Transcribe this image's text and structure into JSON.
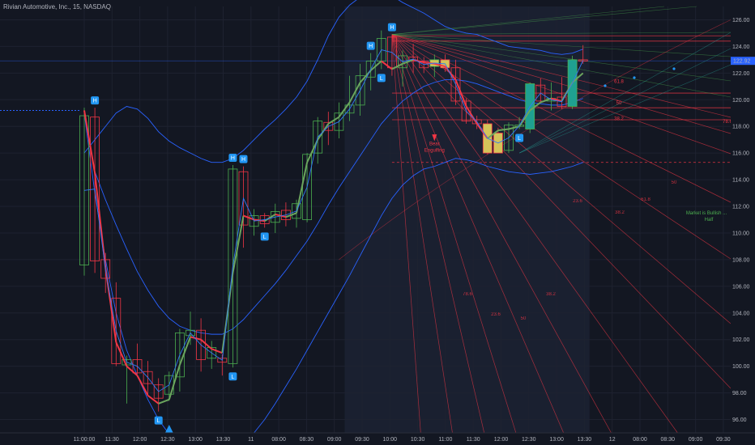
{
  "header": {
    "title": "Rivian Automotive, Inc., 15, NASDAQ"
  },
  "colors": {
    "bg": "#131722",
    "grid": "#1e2230",
    "up": "#26a69a",
    "down": "#ef5350",
    "bb": "#2962ff",
    "zigzag_red": "#f23645",
    "zigzag_green": "#6ba55e",
    "zigzag_blue": "#3179f5",
    "yellow": "#d4c45a",
    "teal": "#1fa091"
  },
  "chart_data": {
    "type": "candlestick",
    "title": "Rivian Automotive, Inc., 15, NASDAQ",
    "ylim": [
      95,
      127
    ],
    "y_ticks": [
      "126.00",
      "124.00",
      "122.00",
      "120.00",
      "118.00",
      "116.00",
      "114.00",
      "112.00",
      "110.00",
      "108.00",
      "106.00",
      "104.00",
      "102.00",
      "100.00",
      "98.00",
      "96.00"
    ],
    "x_ticks": [
      "11:00:00",
      "11:30",
      "12:00",
      "12:30",
      "13:00",
      "13:30",
      "11",
      "08:00",
      "08:30",
      "09:00",
      "09:30",
      "10:00",
      "10:30",
      "11:00",
      "11:30",
      "12:00",
      "12:30",
      "13:00",
      "13:30",
      "12",
      "08:00",
      "08:30",
      "09:00",
      "09:30"
    ],
    "last_price": "122.92",
    "candles": [
      {
        "o": 107.6,
        "h": 119.4,
        "l": 106.8,
        "c": 118.8
      },
      {
        "o": 118.7,
        "h": 119.4,
        "l": 107.0,
        "c": 107.9
      },
      {
        "o": 108.0,
        "h": 108.5,
        "l": 105.5,
        "c": 106.6
      },
      {
        "o": 105.1,
        "h": 106.3,
        "l": 100.0,
        "c": 100.2
      },
      {
        "o": 100.1,
        "h": 100.8,
        "l": 97.2,
        "c": 100.5
      },
      {
        "o": 100.5,
        "h": 101.7,
        "l": 99.4,
        "c": 99.5
      },
      {
        "o": 99.6,
        "h": 100.4,
        "l": 97.9,
        "c": 98.7
      },
      {
        "o": 98.6,
        "h": 99.1,
        "l": 96.6,
        "c": 97.6
      },
      {
        "o": 97.9,
        "h": 99.6,
        "l": 97.4,
        "c": 99.3
      },
      {
        "o": 99.2,
        "h": 102.8,
        "l": 98.1,
        "c": 102.5
      },
      {
        "o": 102.3,
        "h": 104.1,
        "l": 101.6,
        "c": 102.7
      },
      {
        "o": 102.7,
        "h": 103.6,
        "l": 99.6,
        "c": 100.5
      },
      {
        "o": 100.6,
        "h": 101.9,
        "l": 99.8,
        "c": 101.4
      },
      {
        "o": 100.6,
        "h": 100.9,
        "l": 99.3,
        "c": 100.3
      },
      {
        "o": 100.2,
        "h": 115.1,
        "l": 99.9,
        "c": 114.8
      },
      {
        "o": 114.6,
        "h": 115.0,
        "l": 108.9,
        "c": 110.6
      },
      {
        "o": 110.5,
        "h": 111.8,
        "l": 109.8,
        "c": 111.3
      },
      {
        "o": 111.3,
        "h": 111.5,
        "l": 110.4,
        "c": 110.7
      },
      {
        "o": 110.8,
        "h": 112.2,
        "l": 110.0,
        "c": 111.6
      },
      {
        "o": 111.7,
        "h": 112.3,
        "l": 110.5,
        "c": 111.0
      },
      {
        "o": 111.1,
        "h": 112.5,
        "l": 110.4,
        "c": 112.2
      },
      {
        "o": 111.0,
        "h": 116.0,
        "l": 110.8,
        "c": 115.9
      },
      {
        "o": 116.0,
        "h": 118.7,
        "l": 115.2,
        "c": 118.4
      },
      {
        "o": 118.3,
        "h": 119.1,
        "l": 116.6,
        "c": 117.7
      },
      {
        "o": 117.7,
        "h": 119.8,
        "l": 117.1,
        "c": 119.0
      },
      {
        "o": 119.0,
        "h": 121.8,
        "l": 118.4,
        "c": 119.6
      },
      {
        "o": 119.6,
        "h": 122.7,
        "l": 118.8,
        "c": 121.8
      },
      {
        "o": 121.7,
        "h": 123.5,
        "l": 120.7,
        "c": 122.9
      },
      {
        "o": 122.9,
        "h": 125.2,
        "l": 122.3,
        "c": 124.6
      },
      {
        "o": 124.7,
        "h": 124.9,
        "l": 121.8,
        "c": 122.4
      },
      {
        "o": 122.4,
        "h": 123.7,
        "l": 121.0,
        "c": 123.3
      },
      {
        "o": 123.2,
        "h": 124.2,
        "l": 122.0,
        "c": 122.9
      },
      {
        "o": 122.9,
        "h": 123.2,
        "l": 122.0,
        "c": 122.4
      },
      {
        "o": 122.5,
        "h": 123.4,
        "l": 121.7,
        "c": 123.0
      },
      {
        "o": 123.0,
        "h": 123.4,
        "l": 122.1,
        "c": 122.4
      },
      {
        "o": 122.4,
        "h": 123.0,
        "l": 119.6,
        "c": 119.9
      },
      {
        "o": 119.9,
        "h": 120.1,
        "l": 118.2,
        "c": 118.4
      },
      {
        "o": 118.5,
        "h": 118.8,
        "l": 117.8,
        "c": 118.2
      },
      {
        "o": 118.2,
        "h": 118.5,
        "l": 115.9,
        "c": 116.0
      },
      {
        "o": 117.5,
        "h": 117.9,
        "l": 116.0,
        "c": 116.0
      },
      {
        "o": 116.2,
        "h": 118.3,
        "l": 116.0,
        "c": 118.1
      },
      {
        "o": 118.0,
        "h": 118.7,
        "l": 117.8,
        "c": 118.1
      },
      {
        "o": 117.8,
        "h": 121.3,
        "l": 117.5,
        "c": 121.2
      },
      {
        "o": 121.1,
        "h": 121.6,
        "l": 119.8,
        "c": 119.9
      },
      {
        "o": 119.9,
        "h": 121.3,
        "l": 119.2,
        "c": 120.1
      },
      {
        "o": 120.2,
        "h": 121.7,
        "l": 119.3,
        "c": 119.5
      },
      {
        "o": 119.5,
        "h": 123.3,
        "l": 119.3,
        "c": 123.0
      },
      {
        "o": 123.0,
        "h": 124.1,
        "l": 122.7,
        "c": 122.9
      }
    ],
    "bb_upper": [
      116,
      117,
      118,
      119,
      119.5,
      119.3,
      118.6,
      117.6,
      116.9,
      116.4,
      116.0,
      115.6,
      115.3,
      115.3,
      115.6,
      116.2,
      117.0,
      117.8,
      118.5,
      119.3,
      120.2,
      121.4,
      123.0,
      124.8,
      126.2,
      127.1,
      127.7,
      128.0,
      128.1,
      127.8,
      127.3,
      126.9,
      126.5,
      126.0,
      125.5,
      125.2,
      125.0,
      124.9,
      124.6,
      124.3,
      124.0,
      123.9,
      123.8,
      123.7,
      123.5,
      123.4,
      123.5,
      123.8
    ],
    "bb_mid": [
      119,
      114.6,
      112.5,
      110.6,
      108.8,
      107.1,
      105.7,
      104.5,
      103.6,
      103.0,
      102.7,
      102.5,
      102.4,
      102.4,
      102.8,
      103.5,
      104.4,
      105.3,
      106.2,
      107.2,
      108.3,
      109.4,
      110.7,
      112.1,
      113.4,
      114.6,
      115.8,
      117.0,
      118.2,
      119.1,
      119.9,
      120.5,
      121.0,
      121.3,
      121.5,
      121.5,
      121.4,
      121.2,
      120.9,
      120.6,
      120.3,
      120.0,
      119.8,
      119.7,
      119.6,
      119.6,
      119.8,
      120.1
    ],
    "bb_lower": [
      119,
      113,
      108,
      104,
      101.2,
      99.3,
      97.5,
      96.0,
      94.9,
      94.3,
      94.0,
      93.8,
      93.6,
      93.6,
      93.8,
      94.3,
      95.0,
      96.0,
      97.2,
      98.5,
      99.8,
      101.2,
      102.6,
      104.0,
      105.4,
      106.8,
      108.3,
      109.8,
      111.3,
      112.6,
      113.6,
      114.3,
      114.8,
      115.0,
      115.3,
      115.6,
      115.5,
      115.3,
      115.0,
      114.8,
      114.6,
      114.5,
      114.4,
      114.5,
      114.6,
      114.8,
      115.0,
      115.3
    ],
    "zigzag": [
      119.2,
      114.5,
      107.4,
      101.8,
      100.0,
      99.3,
      97.8,
      97.2,
      97.5,
      100.1,
      102.2,
      102.0,
      101.3,
      101.0,
      107.0,
      111.3,
      111.0,
      110.9,
      111.4,
      111.2,
      111.5,
      115.3,
      117.0,
      118.2,
      118.7,
      119.8,
      121.3,
      122.2,
      122.9,
      122.3,
      122.7,
      123.0,
      122.8,
      122.7,
      122.5,
      121.5,
      119.5,
      118.2,
      117.1,
      117.7,
      117.8,
      118.0,
      119.2,
      119.8,
      120.1,
      119.9,
      121.3,
      122.0
    ],
    "markers": [
      {
        "i": 1,
        "txt": "H",
        "pos": "above"
      },
      {
        "i": 7,
        "txt": "L",
        "pos": "below"
      },
      {
        "i": 14,
        "txt": "H",
        "pos": "above"
      },
      {
        "i": 14,
        "txt": "L",
        "pos": "below"
      },
      {
        "i": 15,
        "txt": "H",
        "pos": "above"
      },
      {
        "i": 17,
        "txt": "L",
        "pos": "below"
      },
      {
        "i": 27,
        "txt": "H",
        "pos": "above"
      },
      {
        "i": 29,
        "txt": "H",
        "pos": "above"
      },
      {
        "i": 28,
        "txt": "L",
        "pos": "below"
      },
      {
        "i": 41,
        "txt": "L",
        "pos": "below"
      }
    ],
    "fib_levels": [
      {
        "label": "61.8",
        "price": 121.2,
        "color": "#f23645"
      },
      {
        "label": "50",
        "price": 119.6,
        "color": "#f23645"
      },
      {
        "label": "38.2",
        "price": 118.4,
        "color": "#f23645"
      },
      {
        "label": "78.6",
        "price": 118.2,
        "color": "#f23645"
      }
    ],
    "fan_labels": [
      "23.6",
      "38.2",
      "50",
      "61.8",
      "78.6",
      "23.6",
      "38.2",
      "50"
    ],
    "annotations": {
      "bear": "Bear",
      "engulfing": "Engulfing",
      "market_bullish": "Market is Bullish ...",
      "half": "Half"
    },
    "h_lines": [
      {
        "price": 124.8,
        "color": "#f23645"
      },
      {
        "price": 124.4,
        "color": "#f23645"
      },
      {
        "price": 120.5,
        "color": "#f23645"
      },
      {
        "price": 119.4,
        "color": "#f23645"
      },
      {
        "price": 118.5,
        "color": "#f23645"
      },
      {
        "price": 115.3,
        "color": "#f23645"
      }
    ],
    "dotted_line_price": 119.2
  }
}
